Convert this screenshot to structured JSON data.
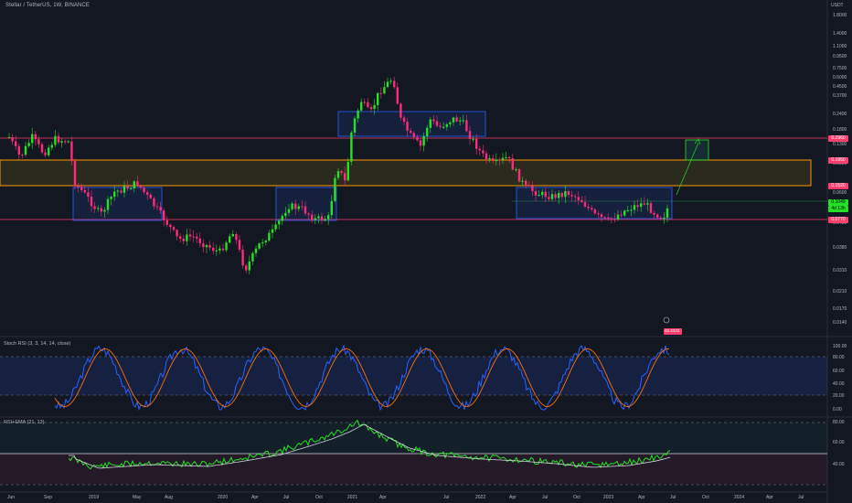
{
  "header": {
    "symbol": "Stellar / TetherUS, 1W, BINANCE"
  },
  "price_axis": {
    "currency": "USDT",
    "ticks": [
      "1.8000",
      "1.4000",
      "1.1000",
      "0.9500",
      "0.7500",
      "0.6000",
      "0.4500",
      "0.3700",
      "0.2400",
      "0.1800",
      "0.1300",
      "0.0850",
      "0.0600",
      "0.0480",
      "0.0380",
      "0.0310",
      "0.0210",
      "0.0170",
      "0.0140"
    ],
    "badges": {
      "last": "0.1049",
      "countdown": "4d 13h",
      "top_resist": "0.2960",
      "mid1": "0.1950",
      "mid2": "0.1520",
      "low": "0.0770"
    }
  },
  "time_axis": {
    "labels": [
      "Jun",
      "Sep",
      "2019",
      "May",
      "Aug",
      "2020",
      "Apr",
      "Jul",
      "Oct",
      "2021",
      "Apr",
      "Jul",
      "2022",
      "Apr",
      "Jul",
      "Oct",
      "2023",
      "Apr",
      "Jul",
      "Oct",
      "2024",
      "Apr",
      "Jul"
    ]
  },
  "stoch": {
    "title": "Stoch RSI (3, 3, 14, 14, close)",
    "ticks": [
      "100.00",
      "80.00",
      "60.00",
      "40.00",
      "20.00",
      "0.00"
    ]
  },
  "rsi": {
    "title": "RSI+EMA (21, 13)",
    "ticks": [
      "80.00",
      "60.00",
      "40.00"
    ]
  },
  "marker": {
    "value": "46.3333"
  },
  "colors": {
    "up": "#26e026",
    "down": "#ff2a7a",
    "bg": "#131722",
    "box_blue": "#2962ff",
    "zone_orange": "#ff9800",
    "line_pink": "#ff3d6e"
  }
}
